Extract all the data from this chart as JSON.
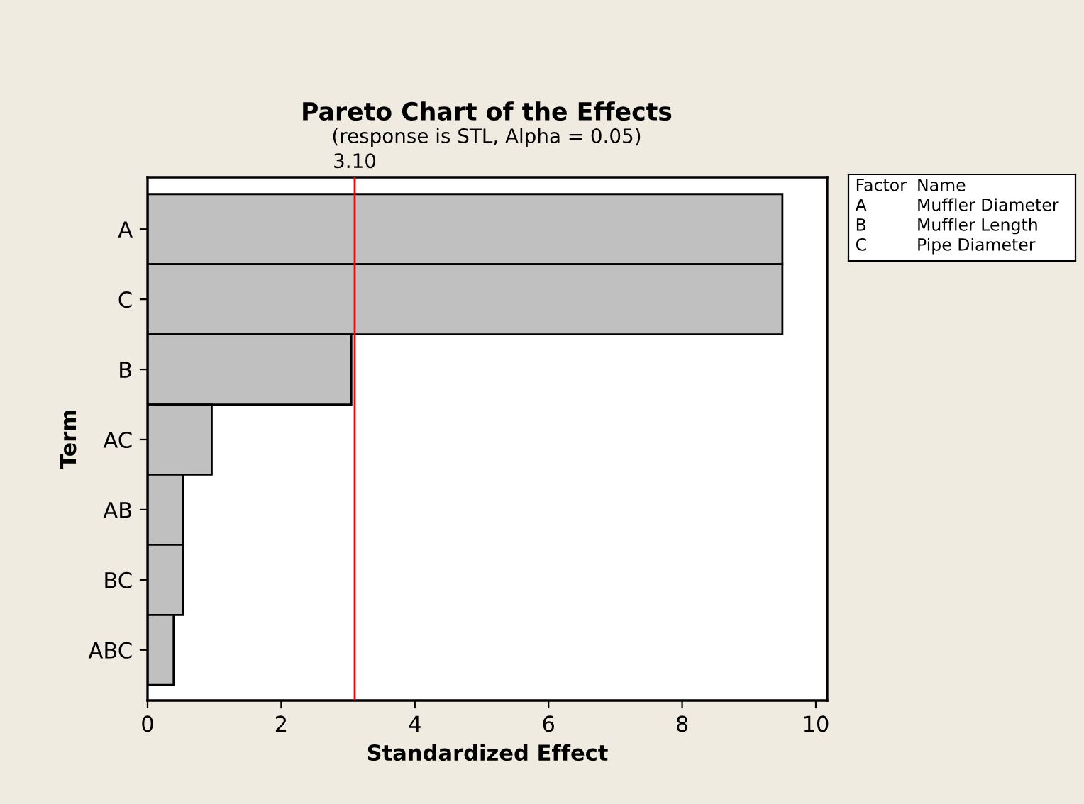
{
  "chart_data": {
    "type": "bar",
    "orientation": "horizontal",
    "title": "Pareto Chart of the Effects",
    "subtitle": "(response is STL, Alpha = 0.05)",
    "xlabel": "Standardized Effect",
    "ylabel": "Term",
    "categories": [
      "A",
      "C",
      "B",
      "AC",
      "AB",
      "BC",
      "ABC"
    ],
    "values": [
      9.5,
      9.5,
      3.05,
      0.96,
      0.53,
      0.53,
      0.39
    ],
    "color": "#c0c0c0",
    "xlim": [
      0,
      10.17
    ],
    "xticks": [
      0,
      2,
      4,
      6,
      8,
      10
    ],
    "ref_lines": [
      {
        "axis": "x",
        "value": 3.1,
        "label": "3.10",
        "color": "#ff0000"
      }
    ],
    "annotations": [
      "Factor  Name",
      "A  Muffler Diameter",
      "B  Muffler Length",
      "C  Pipe Diameter"
    ],
    "grid": false,
    "legend": false
  }
}
